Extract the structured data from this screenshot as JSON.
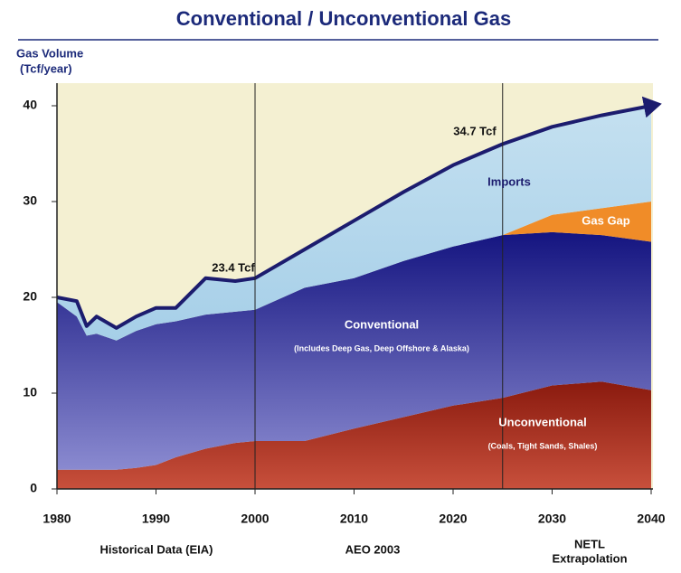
{
  "chart_data": {
    "type": "stacked_area",
    "title": "Conventional / Unconventional Gas",
    "y_label": [
      "Gas Volume",
      "(Tcf/year)"
    ],
    "x": [
      1980,
      1982,
      1983,
      1984,
      1986,
      1988,
      1990,
      1992,
      1995,
      1998,
      2000,
      2005,
      2010,
      2015,
      2020,
      2025,
      2030,
      2035,
      2040
    ],
    "series": [
      {
        "name": "Unconventional",
        "color": "#a02818",
        "values": [
          2,
          2,
          2,
          2,
          2,
          2.2,
          2.5,
          3.3,
          4.2,
          4.8,
          5,
          5,
          6.3,
          7.5,
          8.7,
          9.5,
          10.8,
          11.2,
          10.3
        ]
      },
      {
        "name": "Conventional",
        "color": "#22229a",
        "values": [
          17.5,
          16,
          14,
          14.2,
          13.5,
          14.3,
          14.7,
          14.2,
          14,
          13.7,
          13.7,
          16,
          15.7,
          16.3,
          16.6,
          17,
          16,
          15.3,
          15.5
        ]
      },
      {
        "name": "Gas Gap",
        "color": "#f08c28",
        "values": [
          null,
          null,
          null,
          null,
          null,
          null,
          null,
          null,
          null,
          null,
          null,
          null,
          null,
          null,
          null,
          0,
          1.8,
          2.8,
          4.2
        ]
      },
      {
        "name": "Imports",
        "color": "#bcdcee",
        "values": [
          0.5,
          1.6,
          1,
          1.8,
          1.3,
          1.5,
          1.7,
          1.4,
          3.8,
          3.2,
          3.3,
          4,
          6,
          7.2,
          8.5,
          9.5,
          9.2,
          9.7,
          10
        ]
      }
    ],
    "total_line_color": "#1c1c6e",
    "subtitles": {
      "Conventional": "(Includes Deep Gas, Deep Offshore & Alaska)",
      "Unconventional": "(Coals, Tight Sands, Shales)"
    },
    "annotations": [
      "23.4 Tcf",
      "34.7 Tcf"
    ],
    "dividers": [
      2000,
      2025
    ],
    "periods": [
      "Historical Data (EIA)",
      "AEO 2003",
      [
        "NETL",
        "Extrapolation"
      ]
    ],
    "xlim": [
      1980,
      2040
    ],
    "xticks": [
      1980,
      1990,
      2000,
      2010,
      2020,
      2030,
      2040
    ],
    "ylim": [
      0,
      40
    ],
    "yticks": [
      0,
      10,
      20,
      30,
      40
    ]
  }
}
